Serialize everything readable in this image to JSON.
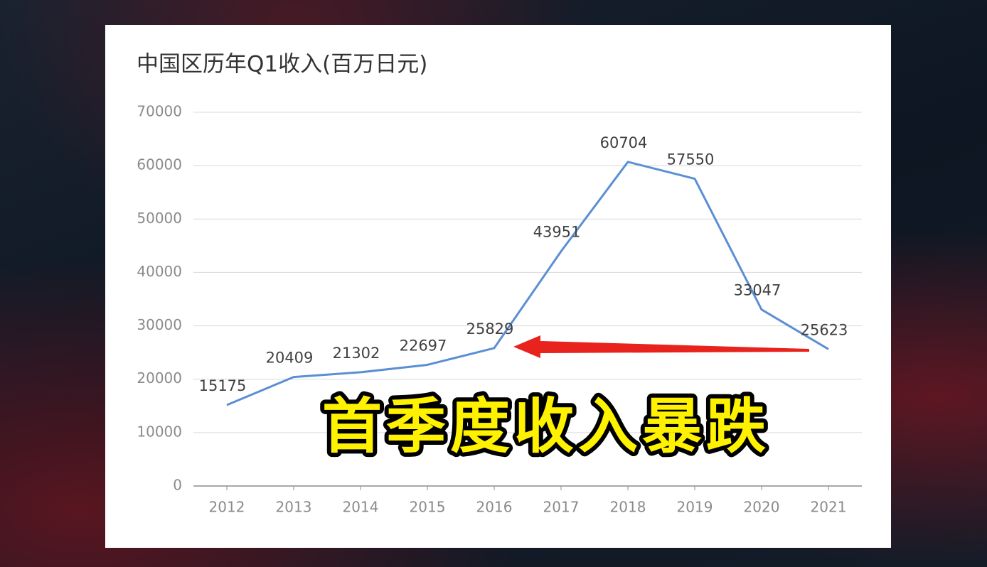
{
  "chart_data": {
    "type": "line",
    "title": "中国区历年Q1收入(百万日元)",
    "categories": [
      "2012",
      "2013",
      "2014",
      "2015",
      "2016",
      "2017",
      "2018",
      "2019",
      "2020",
      "2021"
    ],
    "values": [
      15175,
      20409,
      21302,
      22697,
      25829,
      43951,
      60704,
      57550,
      33047,
      25623
    ],
    "color": "#5b8fd3",
    "ylim": [
      0,
      70000
    ],
    "yticks": [
      0,
      10000,
      20000,
      30000,
      40000,
      50000,
      60000,
      70000
    ],
    "grid": true,
    "annotation": "首季度收入暴跌"
  }
}
